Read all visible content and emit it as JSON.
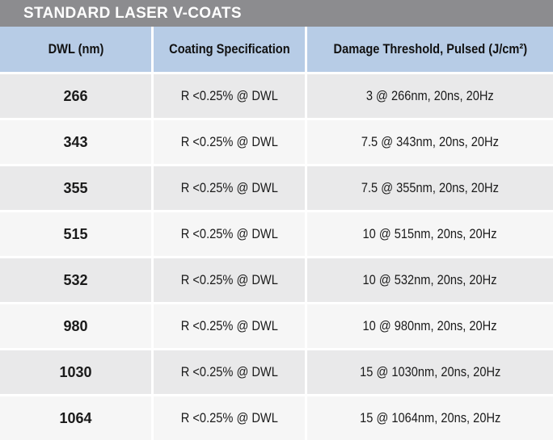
{
  "table_title": "Standard Laser V-Coats",
  "columns": [
    "DWL (nm)",
    "Coating Specification",
    "Damage Threshold, Pulsed (J/cm²)"
  ],
  "rows": [
    {
      "dwl": "266",
      "coating": "R <0.25% @ DWL",
      "damage": "3 @ 266nm, 20ns, 20Hz"
    },
    {
      "dwl": "343",
      "coating": "R <0.25% @ DWL",
      "damage": "7.5 @ 343nm, 20ns, 20Hz"
    },
    {
      "dwl": "355",
      "coating": "R <0.25% @ DWL",
      "damage": "7.5 @ 355nm, 20ns, 20Hz"
    },
    {
      "dwl": "515",
      "coating": "R <0.25% @ DWL",
      "damage": "10 @ 515nm, 20ns, 20Hz"
    },
    {
      "dwl": "532",
      "coating": "R <0.25% @ DWL",
      "damage": "10 @ 532nm, 20ns, 20Hz"
    },
    {
      "dwl": "980",
      "coating": "R <0.25% @ DWL",
      "damage": "10 @ 980nm, 20ns, 20Hz"
    },
    {
      "dwl": "1030",
      "coating": "R <0.25% @ DWL",
      "damage": "15 @ 1030nm, 20ns, 20Hz"
    },
    {
      "dwl": "1064",
      "coating": "R <0.25% @ DWL",
      "damage": "15 @ 1064nm, 20ns, 20Hz"
    }
  ],
  "colors": {
    "title_bar": "#8c8c8f",
    "header": "#b7cce6",
    "row_odd": "#e9e9ea",
    "row_even": "#f6f6f6"
  }
}
